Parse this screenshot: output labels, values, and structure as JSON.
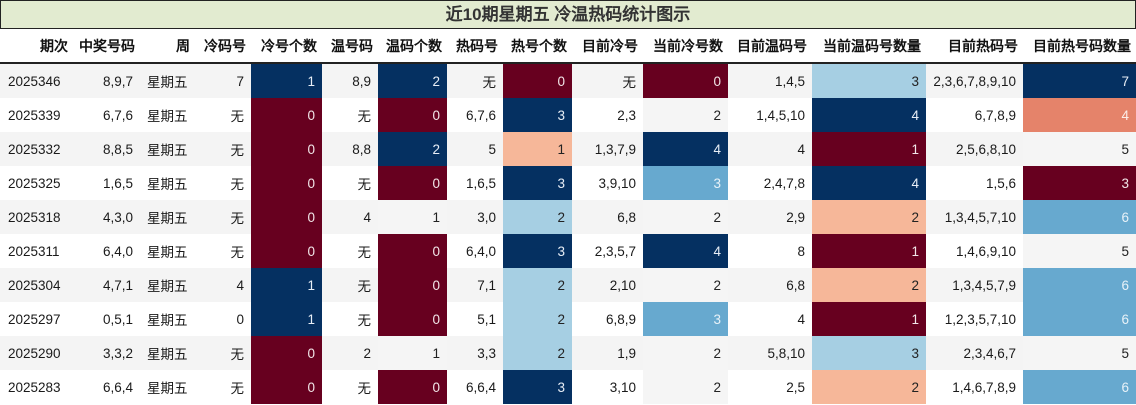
{
  "title": "近10期星期五 冷温热码统计图示",
  "headers": [
    "期次",
    "中奖号码",
    "周",
    "冷码号",
    "冷号个数",
    "温号码",
    "温码个数",
    "热码号",
    "热号个数",
    "目前冷号",
    "当前冷号数",
    "目前温码号",
    "当前温码号数量",
    "目前热码号",
    "目前热号码数量"
  ],
  "rows": [
    {
      "period": "2025346",
      "numbers": "8,9,7",
      "week": "星期五",
      "cold": "7",
      "cold_count": "1",
      "cold_count_color": "c1",
      "warm": "8,9",
      "warm_count": "2",
      "warm_count_color": "c1",
      "hot": "无",
      "hot_count": "0",
      "hot_count_color": "c0",
      "cur_cold": "无",
      "cur_cold_count": "0",
      "cur_cold_count_color": "c0",
      "cur_warm": "1,4,5",
      "cur_warm_count": "3",
      "cur_warm_count_color": "c3",
      "cur_hot": "2,3,6,7,8,9,10",
      "cur_hot_count": "7",
      "cur_hot_count_color": "c1"
    },
    {
      "period": "2025339",
      "numbers": "6,7,6",
      "week": "星期五",
      "cold": "无",
      "cold_count": "0",
      "cold_count_color": "c0",
      "warm": "无",
      "warm_count": "0",
      "warm_count_color": "c0",
      "hot": "6,7,6",
      "hot_count": "3",
      "hot_count_color": "c1",
      "cur_cold": "2,3",
      "cur_cold_count": "2",
      "cur_cold_count_color": "cg",
      "cur_warm": "1,4,5,10",
      "cur_warm_count": "4",
      "cur_warm_count_color": "c1",
      "cur_hot": "6,7,8,9",
      "cur_hot_count": "4",
      "cur_hot_count_color": "c5"
    },
    {
      "period": "2025332",
      "numbers": "8,8,5",
      "week": "星期五",
      "cold": "无",
      "cold_count": "0",
      "cold_count_color": "c0",
      "warm": "8,8",
      "warm_count": "2",
      "warm_count_color": "c1",
      "hot": "5",
      "hot_count": "1",
      "hot_count_color": "c2",
      "cur_cold": "1,3,7,9",
      "cur_cold_count": "4",
      "cur_cold_count_color": "c1",
      "cur_warm": "4",
      "cur_warm_count": "1",
      "cur_warm_count_color": "c0",
      "cur_hot": "2,5,6,8,10",
      "cur_hot_count": "5",
      "cur_hot_count_color": "cg"
    },
    {
      "period": "2025325",
      "numbers": "1,6,5",
      "week": "星期五",
      "cold": "无",
      "cold_count": "0",
      "cold_count_color": "c0",
      "warm": "无",
      "warm_count": "0",
      "warm_count_color": "c0",
      "hot": "1,6,5",
      "hot_count": "3",
      "hot_count_color": "c1",
      "cur_cold": "3,9,10",
      "cur_cold_count": "3",
      "cur_cold_count_color": "c4",
      "cur_warm": "2,4,7,8",
      "cur_warm_count": "4",
      "cur_warm_count_color": "c1",
      "cur_hot": "1,5,6",
      "cur_hot_count": "3",
      "cur_hot_count_color": "c0"
    },
    {
      "period": "2025318",
      "numbers": "4,3,0",
      "week": "星期五",
      "cold": "无",
      "cold_count": "0",
      "cold_count_color": "c0",
      "warm": "4",
      "warm_count": "1",
      "warm_count_color": "cg",
      "hot": "3,0",
      "hot_count": "2",
      "hot_count_color": "c3",
      "cur_cold": "6,8",
      "cur_cold_count": "2",
      "cur_cold_count_color": "cg",
      "cur_warm": "2,9",
      "cur_warm_count": "2",
      "cur_warm_count_color": "c2",
      "cur_hot": "1,3,4,5,7,10",
      "cur_hot_count": "6",
      "cur_hot_count_color": "c4"
    },
    {
      "period": "2025311",
      "numbers": "6,4,0",
      "week": "星期五",
      "cold": "无",
      "cold_count": "0",
      "cold_count_color": "c0",
      "warm": "无",
      "warm_count": "0",
      "warm_count_color": "c0",
      "hot": "6,4,0",
      "hot_count": "3",
      "hot_count_color": "c1",
      "cur_cold": "2,3,5,7",
      "cur_cold_count": "4",
      "cur_cold_count_color": "c1",
      "cur_warm": "8",
      "cur_warm_count": "1",
      "cur_warm_count_color": "c0",
      "cur_hot": "1,4,6,9,10",
      "cur_hot_count": "5",
      "cur_hot_count_color": "cg"
    },
    {
      "period": "2025304",
      "numbers": "4,7,1",
      "week": "星期五",
      "cold": "4",
      "cold_count": "1",
      "cold_count_color": "c1",
      "warm": "无",
      "warm_count": "0",
      "warm_count_color": "c0",
      "hot": "7,1",
      "hot_count": "2",
      "hot_count_color": "c3",
      "cur_cold": "2,10",
      "cur_cold_count": "2",
      "cur_cold_count_color": "cg",
      "cur_warm": "6,8",
      "cur_warm_count": "2",
      "cur_warm_count_color": "c2",
      "cur_hot": "1,3,4,5,7,9",
      "cur_hot_count": "6",
      "cur_hot_count_color": "c4"
    },
    {
      "period": "2025297",
      "numbers": "0,5,1",
      "week": "星期五",
      "cold": "0",
      "cold_count": "1",
      "cold_count_color": "c1",
      "warm": "无",
      "warm_count": "0",
      "warm_count_color": "c0",
      "hot": "5,1",
      "hot_count": "2",
      "hot_count_color": "c3",
      "cur_cold": "6,8,9",
      "cur_cold_count": "3",
      "cur_cold_count_color": "c4",
      "cur_warm": "4",
      "cur_warm_count": "1",
      "cur_warm_count_color": "c0",
      "cur_hot": "1,2,3,5,7,10",
      "cur_hot_count": "6",
      "cur_hot_count_color": "c4"
    },
    {
      "period": "2025290",
      "numbers": "3,3,2",
      "week": "星期五",
      "cold": "无",
      "cold_count": "0",
      "cold_count_color": "c0",
      "warm": "2",
      "warm_count": "1",
      "warm_count_color": "cg",
      "hot": "3,3",
      "hot_count": "2",
      "hot_count_color": "c3",
      "cur_cold": "1,9",
      "cur_cold_count": "2",
      "cur_cold_count_color": "cg",
      "cur_warm": "5,8,10",
      "cur_warm_count": "3",
      "cur_warm_count_color": "c3",
      "cur_hot": "2,3,4,6,7",
      "cur_hot_count": "5",
      "cur_hot_count_color": "cg"
    },
    {
      "period": "2025283",
      "numbers": "6,6,4",
      "week": "星期五",
      "cold": "无",
      "cold_count": "0",
      "cold_count_color": "c0",
      "warm": "无",
      "warm_count": "0",
      "warm_count_color": "c0",
      "hot": "6,6,4",
      "hot_count": "3",
      "hot_count_color": "c1",
      "cur_cold": "3,10",
      "cur_cold_count": "2",
      "cur_cold_count_color": "cg",
      "cur_warm": "2,5",
      "cur_warm_count": "2",
      "cur_warm_count_color": "c2",
      "cur_hot": "1,4,6,7,8,9",
      "cur_hot_count": "6",
      "cur_hot_count_color": "c4"
    }
  ],
  "colors": {
    "c0": "#67001f",
    "c1": "#053061",
    "c2": "#f6b799",
    "c3": "#a6cfe3",
    "c4": "#67a9cf",
    "c5": "#e5836a",
    "cg": "#f5f5f5",
    "title_bg": "#e2ebd0"
  }
}
